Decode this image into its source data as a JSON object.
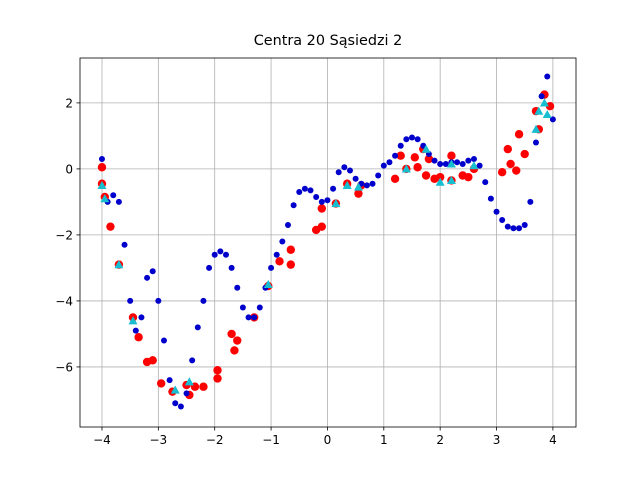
{
  "chart_data": {
    "type": "scatter",
    "title": "Centra 20 Sąsiedzi 2",
    "xlim": [
      -4.39,
      4.41
    ],
    "ylim": [
      -7.82,
      3.36
    ],
    "grid": true,
    "xticks": [
      {
        "value": -4,
        "label": "−4"
      },
      {
        "value": -3,
        "label": "−3"
      },
      {
        "value": -2,
        "label": "−2"
      },
      {
        "value": -1,
        "label": "−1"
      },
      0,
      1,
      2,
      3,
      4
    ],
    "yticks": [
      {
        "value": -6,
        "label": "−6"
      },
      {
        "value": -4,
        "label": "−4"
      },
      {
        "value": -2,
        "label": "−2"
      },
      0,
      2
    ],
    "series": [
      {
        "color": "#ff0000",
        "marker": "o",
        "x": [
          -4,
          -4,
          -3.95,
          -3.85,
          -3.7,
          -3.45,
          -3.35,
          -3.2,
          -3.1,
          -2.95,
          -2.75,
          -2.5,
          -2.45,
          -2.35,
          -2.2,
          -1.95,
          -1.95,
          -1.7,
          -1.6,
          -1.65,
          -1.3,
          -1.05,
          -0.85,
          -0.65,
          -0.65,
          -0.2,
          -0.1,
          -0.1,
          0.15,
          0.35,
          0.55,
          0.6,
          1.2,
          1.3,
          1.4,
          1.55,
          1.6,
          1.7,
          1.75,
          1.8,
          1.9,
          2.0,
          2.2,
          2.2,
          2.4,
          2.5,
          2.6,
          3.1,
          3.2,
          3.25,
          3.35,
          3.4,
          3.5,
          3.7,
          3.75,
          3.85,
          3.95
        ],
        "values": [
          0.05,
          -0.45,
          -0.85,
          -1.75,
          -2.9,
          -4.5,
          -5.1,
          -5.85,
          -5.8,
          -6.5,
          -6.75,
          -6.55,
          -6.85,
          -6.6,
          -6.6,
          -6.1,
          -6.35,
          -5.0,
          -5.2,
          -5.5,
          -4.5,
          -3.55,
          -2.8,
          -2.45,
          -2.9,
          -1.85,
          -1.75,
          -1.2,
          -1.05,
          -0.45,
          -0.75,
          -0.5,
          -0.3,
          0.4,
          0.0,
          0.35,
          0.05,
          0.6,
          -0.2,
          0.3,
          -0.3,
          -0.25,
          -0.35,
          0.4,
          -0.2,
          -0.25,
          0.0,
          -0.1,
          0.6,
          0.15,
          -0.05,
          1.05,
          0.45,
          1.75,
          1.2,
          2.25,
          1.9
        ]
      },
      {
        "color": "#0000cc",
        "marker": "o",
        "x": [
          -4.0,
          -3.9,
          -3.8,
          -3.7,
          -3.6,
          -3.5,
          -3.4,
          -3.3,
          -3.2,
          -3.1,
          -3.0,
          -2.9,
          -2.8,
          -2.7,
          -2.6,
          -2.5,
          -2.4,
          -2.3,
          -2.2,
          -2.1,
          -2.0,
          -1.9,
          -1.8,
          -1.7,
          -1.6,
          -1.5,
          -1.4,
          -1.3,
          -1.2,
          -1.1,
          -1.0,
          -0.9,
          -0.8,
          -0.7,
          -0.6,
          -0.5,
          -0.4,
          -0.3,
          -0.2,
          -0.1,
          0.0,
          0.1,
          0.2,
          0.3,
          0.4,
          0.5,
          0.6,
          0.7,
          0.8,
          0.9,
          1.0,
          1.1,
          1.2,
          1.3,
          1.4,
          1.5,
          1.6,
          1.7,
          1.8,
          1.9,
          2.0,
          2.1,
          2.2,
          2.3,
          2.4,
          2.5,
          2.6,
          2.7,
          2.8,
          2.9,
          3.0,
          3.1,
          3.2,
          3.3,
          3.4,
          3.5,
          3.6,
          3.7,
          3.8,
          3.9,
          4.0
        ],
        "values": [
          0.3,
          -1.0,
          -0.8,
          -1.0,
          -2.3,
          -4.0,
          -4.9,
          -4.5,
          -3.3,
          -3.1,
          -4.0,
          -5.2,
          -6.4,
          -7.1,
          -7.2,
          -6.8,
          -5.8,
          -4.8,
          -4.0,
          -3.0,
          -2.6,
          -2.5,
          -2.6,
          -3.0,
          -3.6,
          -4.2,
          -4.5,
          -4.5,
          -4.2,
          -3.6,
          -3.0,
          -2.6,
          -2.2,
          -1.7,
          -1.1,
          -0.7,
          -0.6,
          -0.65,
          -0.85,
          -1.0,
          -0.95,
          -0.6,
          -0.1,
          0.05,
          -0.05,
          -0.3,
          -0.45,
          -0.5,
          -0.45,
          -0.2,
          0.1,
          0.2,
          0.4,
          0.7,
          0.9,
          0.95,
          0.9,
          0.7,
          0.45,
          0.25,
          0.15,
          0.15,
          0.2,
          0.2,
          0.15,
          0.25,
          0.3,
          0.1,
          -0.4,
          -0.9,
          -1.3,
          -1.55,
          -1.75,
          -1.8,
          -1.8,
          -1.7,
          -1.0,
          0.8,
          2.2,
          2.8,
          1.5
        ]
      },
      {
        "color": "#17becf",
        "marker": "^",
        "x": [
          -4,
          -3.95,
          -3.7,
          -3.45,
          -2.7,
          -2.45,
          -1.05,
          0.15,
          0.35,
          0.55,
          1.4,
          1.75,
          2.0,
          2.2,
          2.2,
          2.6,
          3.7,
          3.75,
          3.9,
          3.85
        ],
        "values": [
          -0.5,
          -0.9,
          -2.9,
          -4.6,
          -6.7,
          -6.45,
          -3.5,
          -1.05,
          -0.5,
          -0.55,
          0.0,
          0.6,
          -0.4,
          0.15,
          -0.35,
          0.1,
          1.2,
          1.75,
          1.65,
          2.0
        ]
      }
    ]
  }
}
